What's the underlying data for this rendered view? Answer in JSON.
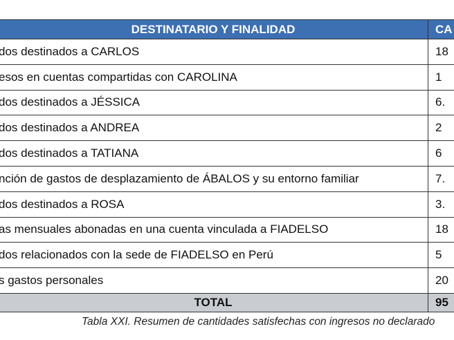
{
  "table": {
    "header": [
      "DESTINATARIO Y FINALIDAD",
      "CA"
    ],
    "rows": [
      [
        "dos destinados a CARLOS",
        "18"
      ],
      [
        "esos en cuentas compartidas con CAROLINA",
        "1"
      ],
      [
        "dos destinados a JÉSSICA",
        "6."
      ],
      [
        "dos destinados a ANDREA",
        "2"
      ],
      [
        "dos destinados a TATIANA",
        "6"
      ],
      [
        "nción de gastos de desplazamiento de ÁBALOS y su entorno familiar",
        "7."
      ],
      [
        "dos destinados a ROSA",
        "3."
      ],
      [
        "as mensuales abonadas en una cuenta vinculada a FIADELSO",
        "18"
      ],
      [
        "dos relacionados con la sede de FIADELSO en Perú",
        "5"
      ],
      [
        "s gastos personales",
        "20"
      ]
    ],
    "total": [
      "TOTAL",
      "95"
    ]
  },
  "caption": "Tabla XXI. Resumen de cantidades satisfechas con ingresos no declarado"
}
